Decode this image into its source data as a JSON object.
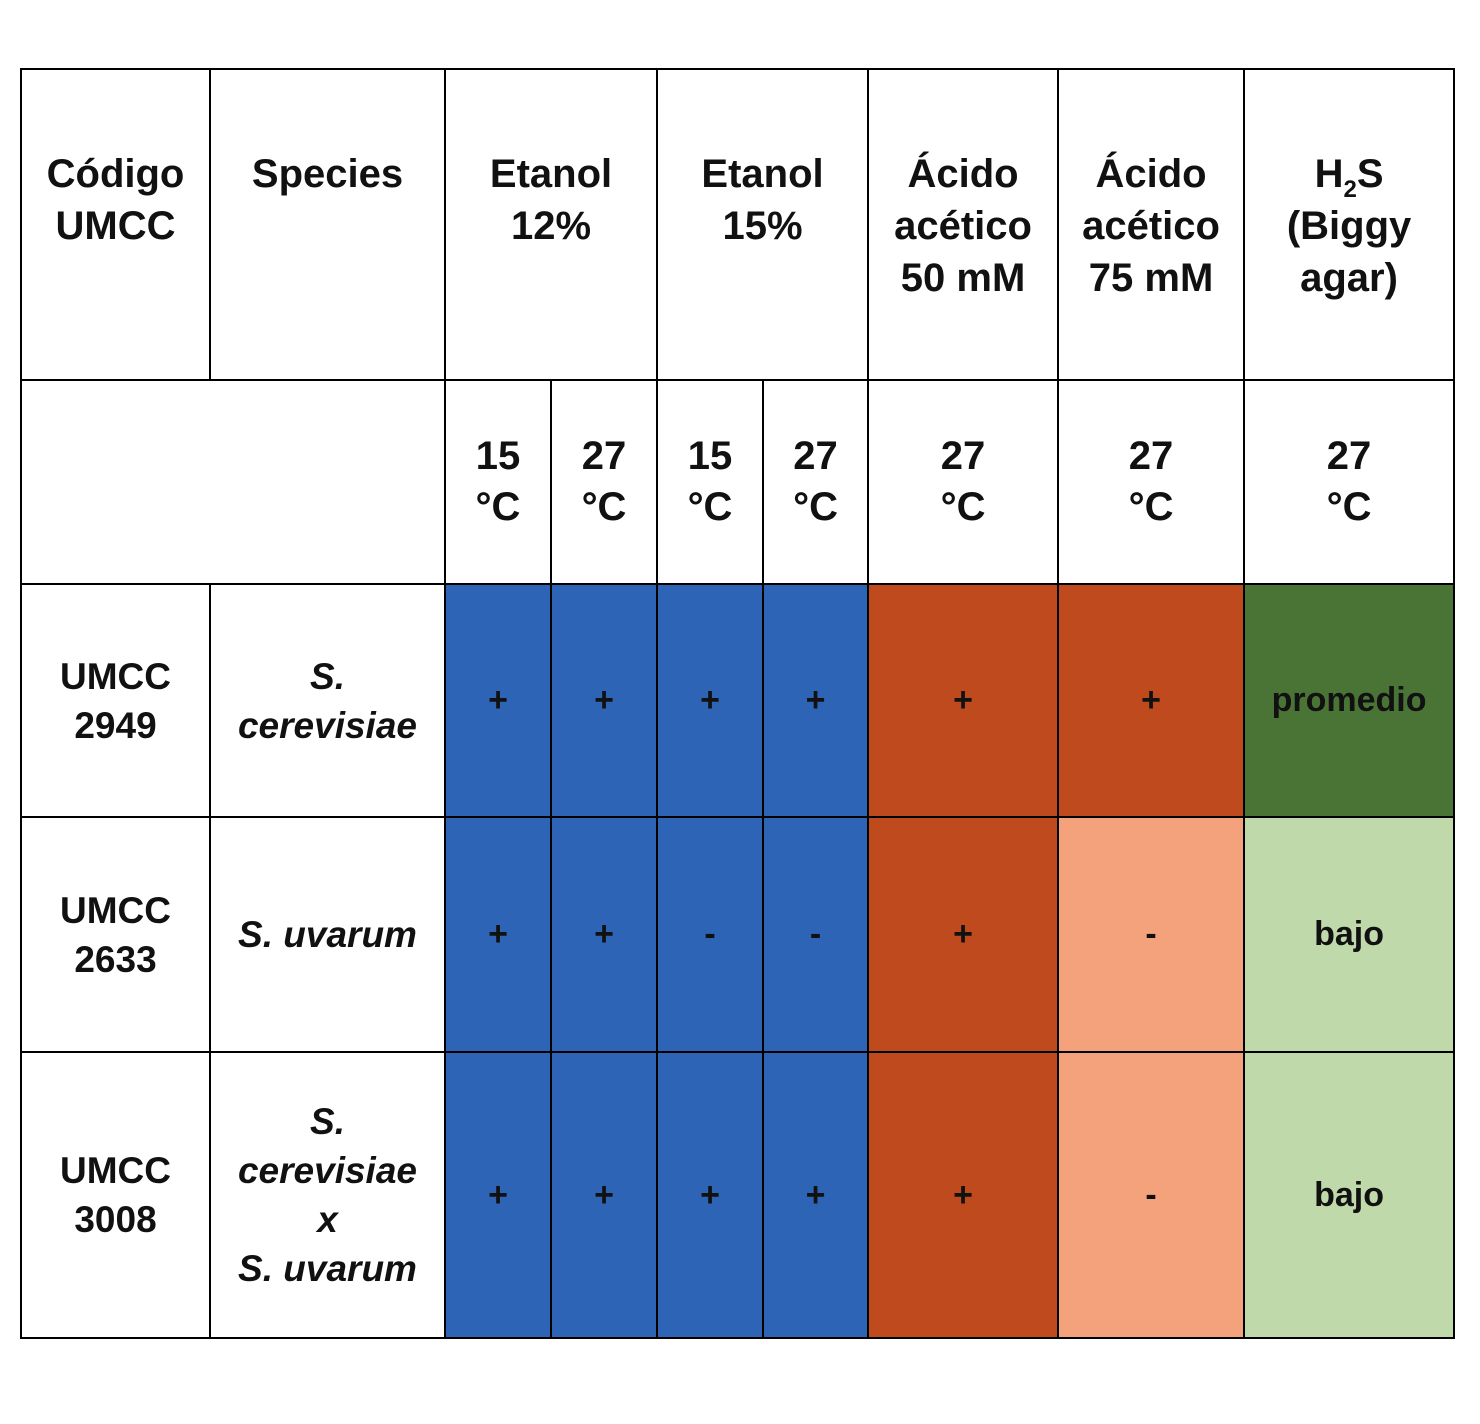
{
  "headers": {
    "code": [
      "Código",
      "UMCC"
    ],
    "species": "Species",
    "etanol12": [
      "Etanol",
      "12%"
    ],
    "etanol15": [
      "Etanol",
      "15%"
    ],
    "acido50": [
      "Ácido",
      "acético",
      "50 mM"
    ],
    "acido75": [
      "Ácido",
      "acético",
      "75 mM"
    ],
    "h2s_main": "H",
    "h2s_sub": "2",
    "h2s_tail": "S",
    "h2s_lines": [
      "(Biggy",
      "agar)"
    ]
  },
  "temps": [
    [
      "15",
      "°C"
    ],
    [
      "27",
      "°C"
    ],
    [
      "15",
      "°C"
    ],
    [
      "27",
      "°C"
    ],
    [
      "27",
      "°C"
    ],
    [
      "27",
      "°C"
    ],
    [
      "27",
      "°C"
    ]
  ],
  "rows": [
    {
      "code": [
        "UMCC",
        "2949"
      ],
      "species": [
        "S.",
        "cerevisiae"
      ],
      "values": [
        "+",
        "+",
        "+",
        "+",
        "+",
        "+"
      ],
      "h2s": "promedio",
      "colors": [
        "#2e64b6",
        "#bf4a1d",
        "#bf4a1d",
        "#4a7436"
      ]
    },
    {
      "code": [
        "UMCC",
        "2633"
      ],
      "species": [
        "S. uvarum"
      ],
      "values": [
        "+",
        "+",
        "-",
        "-",
        "+",
        "-"
      ],
      "h2s": "bajo",
      "colors": [
        "#2e64b6",
        "#bf4a1d",
        "#f3a27c",
        "#bfd9ab"
      ]
    },
    {
      "code": [
        "UMCC",
        "3008"
      ],
      "species": [
        "S.",
        "cerevisiae",
        "x",
        "S. uvarum"
      ],
      "values": [
        "+",
        "+",
        "+",
        "+",
        "+",
        "-"
      ],
      "h2s": "bajo",
      "colors": [
        "#2e64b6",
        "#bf4a1d",
        "#f3a27c",
        "#bfd9ab"
      ]
    }
  ]
}
